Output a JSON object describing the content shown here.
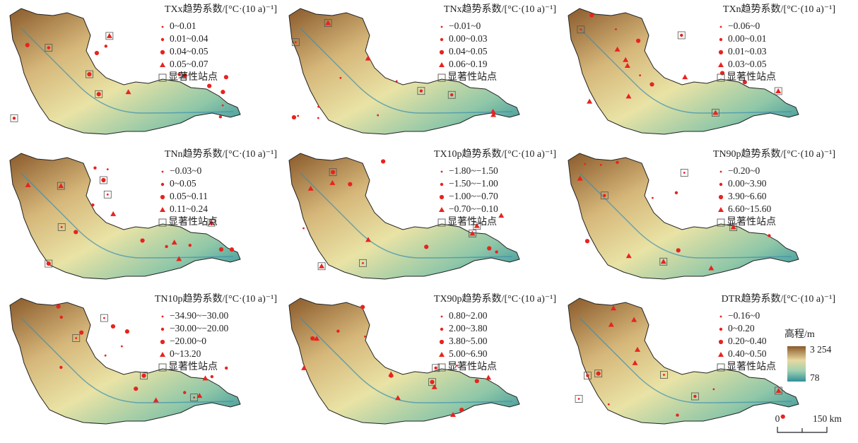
{
  "panels": [
    {
      "title": "TXx趋势系数/[°C·(10 a)⁻¹]",
      "legend": [
        "0~0.01",
        "0.01~0.04",
        "0.04~0.05",
        "0.05~0.07"
      ],
      "significance": "显著性站点"
    },
    {
      "title": "TNx趋势系数/[°C·(10 a)⁻¹]",
      "legend": [
        "−0.01~0",
        "0.00~0.03",
        "0.04~0.05",
        "0.06~0.19"
      ],
      "significance": "显著性站点"
    },
    {
      "title": "TXn趋势系数/[°C·(10 a)⁻¹]",
      "legend": [
        "−0.06~0",
        "0.00~0.01",
        "0.01~0.03",
        "0.03~0.05"
      ],
      "significance": "显著性站点"
    },
    {
      "title": "TNn趋势系数/[°C·(10 a)⁻¹]",
      "legend": [
        "−0.03~0",
        "0~0.05",
        "0.05~0.11",
        "0.11~0.24"
      ],
      "significance": "显著性站点"
    },
    {
      "title": "TX10p趋势系数/[°C·(10 a)⁻¹]",
      "legend": [
        "−1.80~−1.50",
        "−1.50~−1.00",
        "−1.00~−0.70",
        "−0.70~−0.10"
      ],
      "significance": "显著性站点"
    },
    {
      "title": "TN90p趋势系数/[°C·(10 a)⁻¹]",
      "legend": [
        "−0.20~0",
        "0.00~3.90",
        "3.90~6.60",
        "6.60~15.60"
      ],
      "significance": "显著性站点"
    },
    {
      "title": "TN10p趋势系数/[°C·(10 a)⁻¹]",
      "legend": [
        "−34.90~−30.00",
        "−30.00~−20.00",
        "−20.00~0",
        "0~13.20"
      ],
      "significance": "显著性站点"
    },
    {
      "title": "TX90p趋势系数/[°C·(10 a)⁻¹]",
      "legend": [
        "0.80~2.00",
        "2.00~3.80",
        "3.80~5.00",
        "5.00~6.90"
      ],
      "significance": "显著性站点"
    },
    {
      "title": "DTR趋势系数/[°C·(10 a)⁻¹]",
      "legend": [
        "−0.16~0",
        "0~0.20",
        "0.20~0.40",
        "0.40~0.50"
      ],
      "significance": "显著性站点"
    }
  ],
  "elevation_legend": {
    "title": "高程/m",
    "max": "3 254",
    "min": "78"
  },
  "scale_bar": {
    "start": "0",
    "end": "150 km"
  }
}
